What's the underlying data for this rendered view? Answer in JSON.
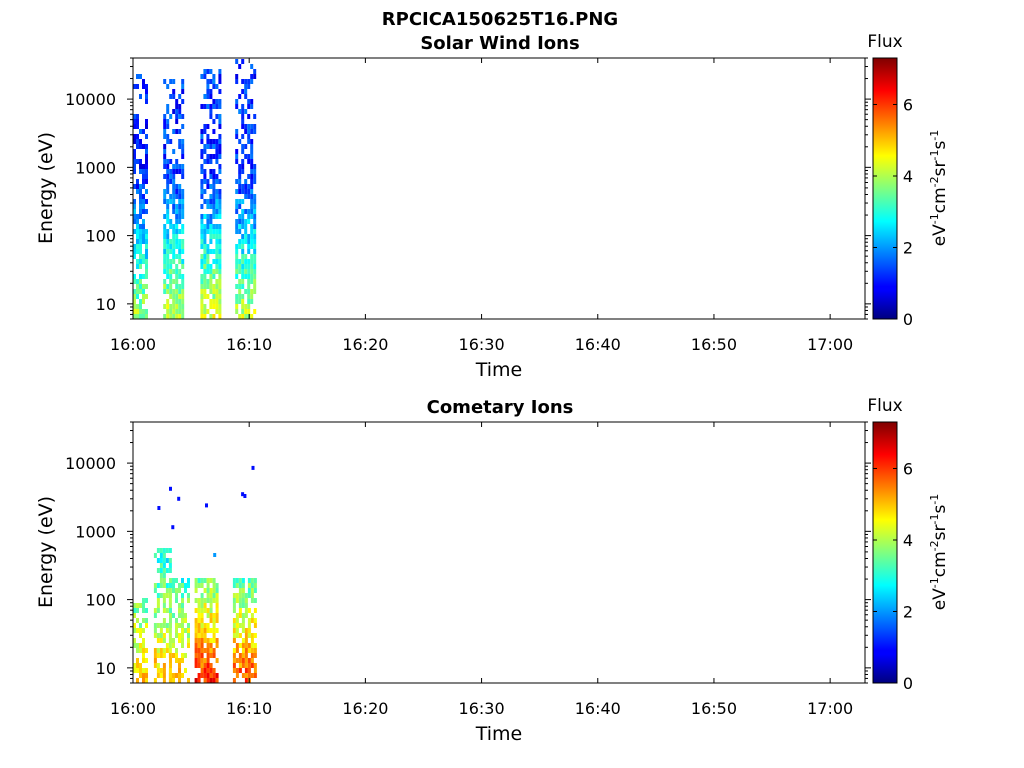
{
  "figure": {
    "main_title": "RPCICA150625T16.PNG"
  },
  "colormap": "jet",
  "chart_data": [
    {
      "type": "heatmap",
      "title": "Solar Wind Ions",
      "xlabel": "Time",
      "ylabel": "Energy (eV)",
      "x_ticks": [
        "16:00",
        "16:10",
        "16:20",
        "16:30",
        "16:40",
        "16:50",
        "17:00"
      ],
      "x_range_minutes": [
        0,
        63
      ],
      "y_scale": "log",
      "y_ticks": [
        "10",
        "100",
        "1000",
        "10000"
      ],
      "y_range": [
        6,
        40000
      ],
      "colorbar": {
        "label": "Flux",
        "unit": "eV-1cm-2sr-1s-1",
        "ticks": [
          "0",
          "2",
          "4",
          "6"
        ],
        "range": [
          0,
          7.3
        ]
      },
      "bursts": [
        {
          "x_start": 0.0,
          "x_end": 1.1,
          "fill": 0.75,
          "flux_low": 4.0,
          "flux_high": 1.2,
          "max_energy": 20000
        },
        {
          "x_start": 2.6,
          "x_end": 4.3,
          "fill": 0.8,
          "flux_low": 4.3,
          "flux_high": 1.3,
          "max_energy": 17000
        },
        {
          "x_start": 5.8,
          "x_end": 7.4,
          "fill": 0.8,
          "flux_low": 4.5,
          "flux_high": 1.3,
          "max_energy": 25000
        },
        {
          "x_start": 8.8,
          "x_end": 10.6,
          "fill": 0.75,
          "flux_low": 4.2,
          "flux_high": 1.3,
          "max_energy": 35000
        }
      ]
    },
    {
      "type": "heatmap",
      "title": "Cometary Ions",
      "xlabel": "Time",
      "ylabel": "Energy (eV)",
      "x_ticks": [
        "16:00",
        "16:10",
        "16:20",
        "16:30",
        "16:40",
        "16:50",
        "17:00"
      ],
      "x_range_minutes": [
        0,
        63
      ],
      "y_scale": "log",
      "y_ticks": [
        "10",
        "100",
        "1000",
        "10000"
      ],
      "y_range": [
        6,
        40000
      ],
      "colorbar": {
        "label": "Flux",
        "unit": "eV-1cm-2sr-1s-1",
        "ticks": [
          "0",
          "2",
          "4",
          "6"
        ],
        "range": [
          0,
          7.3
        ]
      },
      "bursts": [
        {
          "x_start": 0.0,
          "x_end": 1.1,
          "fill": 0.55,
          "flux_low": 5.0,
          "flux_high": 2.5,
          "max_energy": 100
        },
        {
          "x_start": 1.8,
          "x_end": 3.1,
          "fill": 0.65,
          "flux_low": 5.2,
          "flux_high": 2.5,
          "max_energy": 550
        },
        {
          "x_start": 3.1,
          "x_end": 4.7,
          "fill": 0.6,
          "flux_low": 5.2,
          "flux_high": 2.3,
          "max_energy": 200
        },
        {
          "x_start": 5.3,
          "x_end": 7.3,
          "fill": 0.75,
          "flux_low": 6.3,
          "flux_high": 2.5,
          "max_energy": 200
        },
        {
          "x_start": 8.6,
          "x_end": 10.5,
          "fill": 0.75,
          "flux_low": 6.0,
          "flux_high": 2.4,
          "max_energy": 200
        }
      ],
      "scatter": [
        {
          "x": 2.1,
          "energy": 2200,
          "flux": 1.0
        },
        {
          "x": 3.1,
          "energy": 4200,
          "flux": 1.0
        },
        {
          "x": 3.3,
          "energy": 1150,
          "flux": 1.0
        },
        {
          "x": 3.8,
          "energy": 3000,
          "flux": 1.0
        },
        {
          "x": 6.2,
          "energy": 2400,
          "flux": 1.0
        },
        {
          "x": 9.3,
          "energy": 3500,
          "flux": 1.0
        },
        {
          "x": 9.5,
          "energy": 3300,
          "flux": 1.0
        },
        {
          "x": 10.2,
          "energy": 8500,
          "flux": 1.0
        },
        {
          "x": 6.9,
          "energy": 450,
          "flux": 2.0
        }
      ]
    }
  ]
}
